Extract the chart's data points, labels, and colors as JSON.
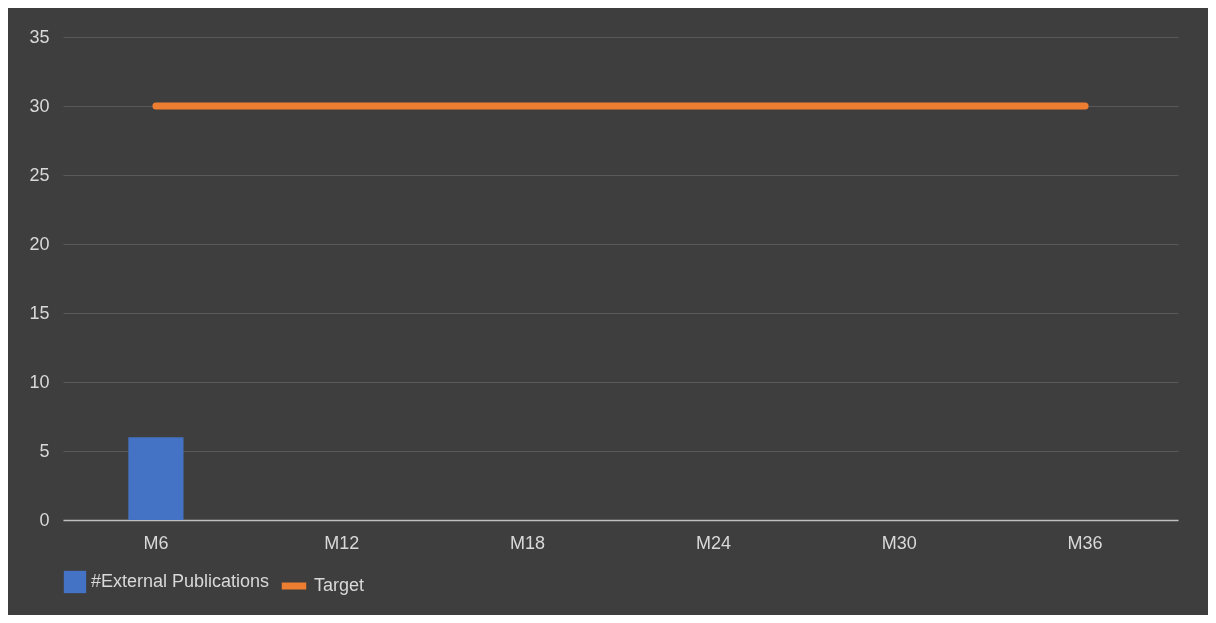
{
  "chart_data": {
    "type": "bar",
    "categories": [
      "M6",
      "M12",
      "M18",
      "M24",
      "M30",
      "M36"
    ],
    "series": [
      {
        "name": "#External Publications",
        "color": "#4472c4",
        "values": [
          6,
          null,
          null,
          null,
          null,
          null
        ]
      },
      {
        "name": "Target",
        "type": "line",
        "color": "#ed7d31",
        "values": [
          30,
          30,
          30,
          30,
          30,
          30
        ]
      }
    ],
    "ylim": [
      0,
      35
    ],
    "yticks": [
      0,
      5,
      10,
      15,
      20,
      25,
      30,
      35
    ],
    "grid": "y",
    "legend": "bottom"
  }
}
